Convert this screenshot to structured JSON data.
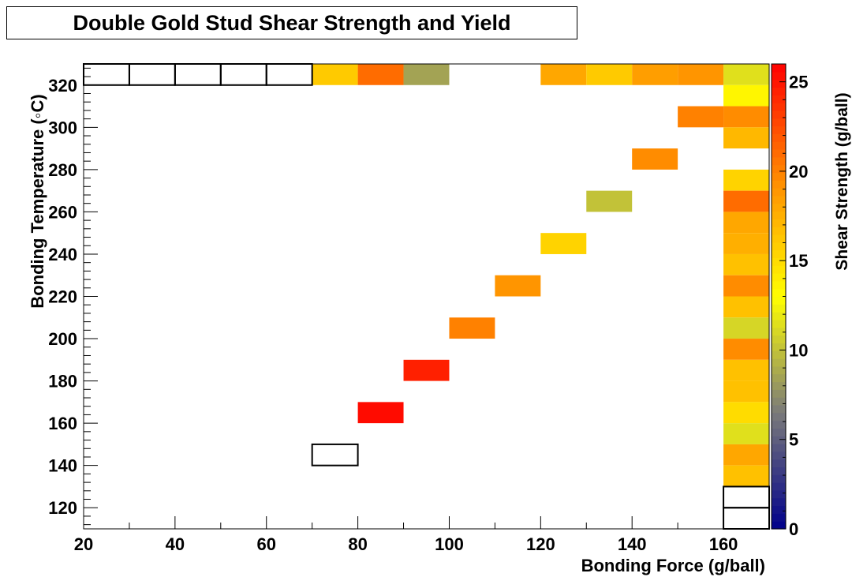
{
  "chart_data": {
    "type": "heatmap",
    "title": "Double Gold Stud Shear Strength and Yield",
    "xlabel": "Bonding Force (g/ball)",
    "ylabel": "Bonding Temperature (◦C)",
    "zlabel": "Shear Strength (g/ball)",
    "xlim": [
      20,
      170
    ],
    "ylim": [
      110,
      330
    ],
    "zlim": [
      0,
      26
    ],
    "x_ticks": [
      20,
      40,
      60,
      80,
      100,
      120,
      140,
      160
    ],
    "y_ticks": [
      120,
      140,
      160,
      180,
      200,
      220,
      240,
      260,
      280,
      300,
      320
    ],
    "z_ticks": [
      0,
      5,
      10,
      15,
      20,
      25
    ],
    "palette": [
      "#00008b",
      "#7a7a7a",
      "#ffff00",
      "#ff8c00",
      "#ff0000"
    ],
    "grid": false,
    "cells": [
      {
        "x": [
          70,
          80
        ],
        "y": [
          320,
          330
        ],
        "z": 16.0
      },
      {
        "x": [
          80,
          90
        ],
        "y": [
          320,
          330
        ],
        "z": 21.0
      },
      {
        "x": [
          90,
          100
        ],
        "y": [
          320,
          330
        ],
        "z": 8.5
      },
      {
        "x": [
          120,
          130
        ],
        "y": [
          320,
          330
        ],
        "z": 18.0
      },
      {
        "x": [
          130,
          140
        ],
        "y": [
          320,
          330
        ],
        "z": 16.0
      },
      {
        "x": [
          140,
          150
        ],
        "y": [
          320,
          330
        ],
        "z": 18.5
      },
      {
        "x": [
          150,
          160
        ],
        "y": [
          320,
          330
        ],
        "z": 19.0
      },
      {
        "x": [
          160,
          170
        ],
        "y": [
          320,
          330
        ],
        "z": 11.5
      },
      {
        "x": [
          160,
          170
        ],
        "y": [
          310,
          320
        ],
        "z": 13.5
      },
      {
        "x": [
          150,
          160
        ],
        "y": [
          300,
          310
        ],
        "z": 20.0
      },
      {
        "x": [
          160,
          170
        ],
        "y": [
          300,
          310
        ],
        "z": 19.5
      },
      {
        "x": [
          160,
          170
        ],
        "y": [
          290,
          300
        ],
        "z": 17.0
      },
      {
        "x": [
          140,
          150
        ],
        "y": [
          280,
          290
        ],
        "z": 19.5
      },
      {
        "x": [
          160,
          170
        ],
        "y": [
          270,
          280
        ],
        "z": 15.5
      },
      {
        "x": [
          130,
          140
        ],
        "y": [
          260,
          270
        ],
        "z": 10.0
      },
      {
        "x": [
          160,
          170
        ],
        "y": [
          260,
          270
        ],
        "z": 21.0
      },
      {
        "x": [
          160,
          170
        ],
        "y": [
          250,
          260
        ],
        "z": 18.0
      },
      {
        "x": [
          120,
          130
        ],
        "y": [
          240,
          250
        ],
        "z": 15.5
      },
      {
        "x": [
          160,
          170
        ],
        "y": [
          240,
          250
        ],
        "z": 17.5
      },
      {
        "x": [
          160,
          170
        ],
        "y": [
          230,
          240
        ],
        "z": 16.5
      },
      {
        "x": [
          110,
          120
        ],
        "y": [
          220,
          230
        ],
        "z": 19.0
      },
      {
        "x": [
          160,
          170
        ],
        "y": [
          220,
          230
        ],
        "z": 19.5
      },
      {
        "x": [
          160,
          170
        ],
        "y": [
          210,
          220
        ],
        "z": 16.5
      },
      {
        "x": [
          100,
          110
        ],
        "y": [
          200,
          210
        ],
        "z": 20.0
      },
      {
        "x": [
          160,
          170
        ],
        "y": [
          200,
          210
        ],
        "z": 11.0
      },
      {
        "x": [
          160,
          170
        ],
        "y": [
          190,
          200
        ],
        "z": 19.5
      },
      {
        "x": [
          90,
          100
        ],
        "y": [
          180,
          190
        ],
        "z": 24.5
      },
      {
        "x": [
          160,
          170
        ],
        "y": [
          180,
          190
        ],
        "z": 16.5
      },
      {
        "x": [
          160,
          170
        ],
        "y": [
          170,
          180
        ],
        "z": 16.5
      },
      {
        "x": [
          80,
          90
        ],
        "y": [
          160,
          170
        ],
        "z": 25.5
      },
      {
        "x": [
          160,
          170
        ],
        "y": [
          160,
          170
        ],
        "z": 15.0
      },
      {
        "x": [
          160,
          170
        ],
        "y": [
          150,
          160
        ],
        "z": 11.5
      },
      {
        "x": [
          160,
          170
        ],
        "y": [
          140,
          150
        ],
        "z": 18.0
      },
      {
        "x": [
          160,
          170
        ],
        "y": [
          130,
          140
        ],
        "z": 16.5
      }
    ],
    "empty_cells": [
      {
        "x": [
          20,
          30
        ],
        "y": [
          320,
          330
        ]
      },
      {
        "x": [
          30,
          40
        ],
        "y": [
          320,
          330
        ]
      },
      {
        "x": [
          40,
          50
        ],
        "y": [
          320,
          330
        ]
      },
      {
        "x": [
          50,
          60
        ],
        "y": [
          320,
          330
        ]
      },
      {
        "x": [
          60,
          70
        ],
        "y": [
          320,
          330
        ]
      },
      {
        "x": [
          70,
          80
        ],
        "y": [
          140,
          150
        ]
      },
      {
        "x": [
          160,
          170
        ],
        "y": [
          120,
          130
        ]
      },
      {
        "x": [
          160,
          170
        ],
        "y": [
          110,
          120
        ]
      }
    ]
  }
}
